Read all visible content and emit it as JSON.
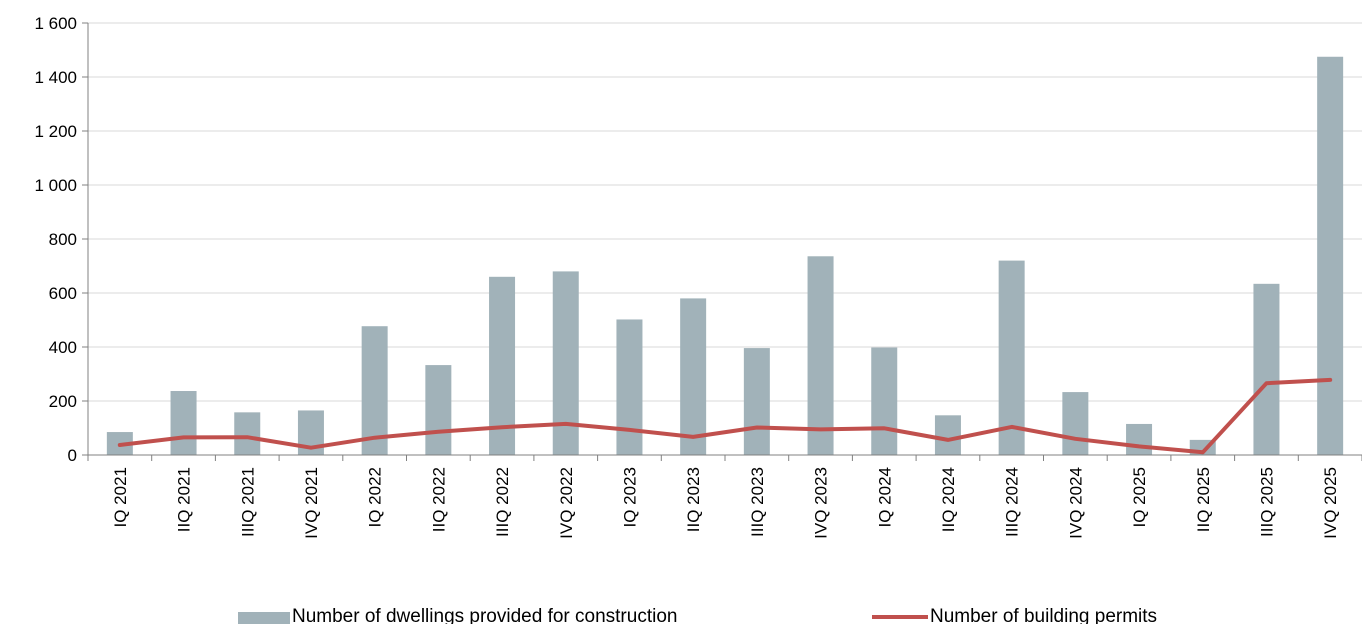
{
  "chart_data": {
    "type": "bar",
    "categories": [
      "IQ 2021",
      "IIQ 2021",
      "IIIQ 2021",
      "IVQ 2021",
      "IQ 2022",
      "IIQ 2022",
      "IIIQ 2022",
      "IVQ 2022",
      "IQ 2023",
      "IIQ 2023",
      "IIIQ 2023",
      "IVQ 2023",
      "IQ 2024",
      "IIQ 2024",
      "IIIQ 2024",
      "IVQ 2024",
      "IQ 2025",
      "IIQ 2025",
      "IIIQ 2025",
      "IVQ 2025"
    ],
    "series": [
      {
        "name": "Number of dwellings provided for construction",
        "type": "bar",
        "color": "#a1b2b9",
        "values": [
          85,
          237,
          158,
          165,
          477,
          333,
          660,
          680,
          502,
          580,
          396,
          736,
          398,
          147,
          720,
          233,
          115,
          56,
          634,
          1475
        ]
      },
      {
        "name": "Number of building permits",
        "type": "line",
        "color": "#c0504d",
        "values": [
          37,
          65,
          66,
          27,
          64,
          86,
          103,
          115,
          93,
          67,
          102,
          95,
          99,
          56,
          104,
          60,
          32,
          10,
          266,
          278
        ]
      }
    ],
    "yticks": [
      "0",
      "200",
      "400",
      "600",
      "800",
      "1 000",
      "1 200",
      "1 400",
      "1 600"
    ],
    "ylim": [
      0,
      1600
    ],
    "grid": true,
    "legend_position": "bottom"
  }
}
